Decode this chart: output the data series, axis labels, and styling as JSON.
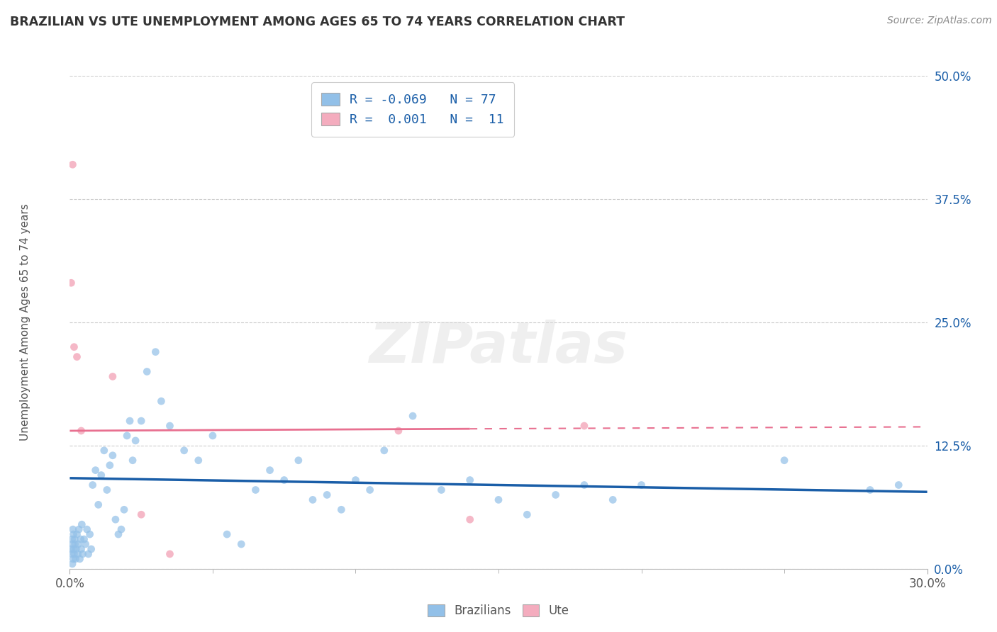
{
  "title": "BRAZILIAN VS UTE UNEMPLOYMENT AMONG AGES 65 TO 74 YEARS CORRELATION CHART",
  "source": "Source: ZipAtlas.com",
  "ylabel": "Unemployment Among Ages 65 to 74 years",
  "ytick_values": [
    0.0,
    12.5,
    25.0,
    37.5,
    50.0
  ],
  "xlim": [
    0.0,
    30.0
  ],
  "ylim": [
    0.0,
    50.0
  ],
  "legend_r_blue": "R = -0.069",
  "legend_n_blue": "N = 77",
  "legend_r_pink": "R =  0.001",
  "legend_n_pink": "N =  11",
  "blue_color": "#92C0E8",
  "pink_color": "#F4ACBE",
  "blue_line_color": "#1A5EA8",
  "pink_line_color": "#E87090",
  "dot_size": 60,
  "brazilians_x": [
    0.05,
    0.07,
    0.08,
    0.09,
    0.1,
    0.11,
    0.12,
    0.13,
    0.14,
    0.15,
    0.17,
    0.18,
    0.2,
    0.22,
    0.25,
    0.28,
    0.3,
    0.32,
    0.35,
    0.38,
    0.4,
    0.42,
    0.45,
    0.5,
    0.55,
    0.6,
    0.65,
    0.7,
    0.75,
    0.8,
    0.9,
    1.0,
    1.1,
    1.2,
    1.3,
    1.4,
    1.5,
    1.6,
    1.7,
    1.8,
    1.9,
    2.0,
    2.1,
    2.2,
    2.3,
    2.5,
    2.7,
    3.0,
    3.2,
    3.5,
    4.0,
    4.5,
    5.0,
    5.5,
    6.0,
    6.5,
    7.0,
    7.5,
    8.0,
    8.5,
    9.0,
    9.5,
    10.0,
    10.5,
    11.0,
    12.0,
    13.0,
    14.0,
    15.0,
    16.0,
    17.0,
    18.0,
    19.0,
    20.0,
    25.0,
    28.0,
    29.0
  ],
  "brazilians_y": [
    2.0,
    1.5,
    3.0,
    0.5,
    2.5,
    4.0,
    1.0,
    3.5,
    2.0,
    1.5,
    3.0,
    2.5,
    1.0,
    2.0,
    3.5,
    1.5,
    2.5,
    4.0,
    1.0,
    3.0,
    2.0,
    4.5,
    1.5,
    3.0,
    2.5,
    4.0,
    1.5,
    3.5,
    2.0,
    8.5,
    10.0,
    6.5,
    9.5,
    12.0,
    8.0,
    10.5,
    11.5,
    5.0,
    3.5,
    4.0,
    6.0,
    13.5,
    15.0,
    11.0,
    13.0,
    15.0,
    20.0,
    22.0,
    17.0,
    14.5,
    12.0,
    11.0,
    13.5,
    3.5,
    2.5,
    8.0,
    10.0,
    9.0,
    11.0,
    7.0,
    7.5,
    6.0,
    9.0,
    8.0,
    12.0,
    15.5,
    8.0,
    9.0,
    7.0,
    5.5,
    7.5,
    8.5,
    7.0,
    8.5,
    11.0,
    8.0,
    8.5
  ],
  "ute_x": [
    0.05,
    0.1,
    0.15,
    0.25,
    0.4,
    1.5,
    2.5,
    3.5,
    11.5,
    14.0,
    18.0
  ],
  "ute_y": [
    29.0,
    41.0,
    22.5,
    21.5,
    14.0,
    19.5,
    5.5,
    1.5,
    14.0,
    5.0,
    14.5
  ],
  "blue_reg_x0": 0.0,
  "blue_reg_x1": 30.0,
  "blue_reg_y0": 9.2,
  "blue_reg_y1": 7.8,
  "pink_reg_x0": 0.0,
  "pink_reg_x1": 14.0,
  "pink_reg_y0": 14.0,
  "pink_reg_y1": 14.2,
  "pink_dash_x0": 14.0,
  "pink_dash_x1": 30.0,
  "pink_dash_y0": 14.2,
  "pink_dash_y1": 14.4,
  "background_color": "#FFFFFF",
  "grid_color": "#CCCCCC"
}
